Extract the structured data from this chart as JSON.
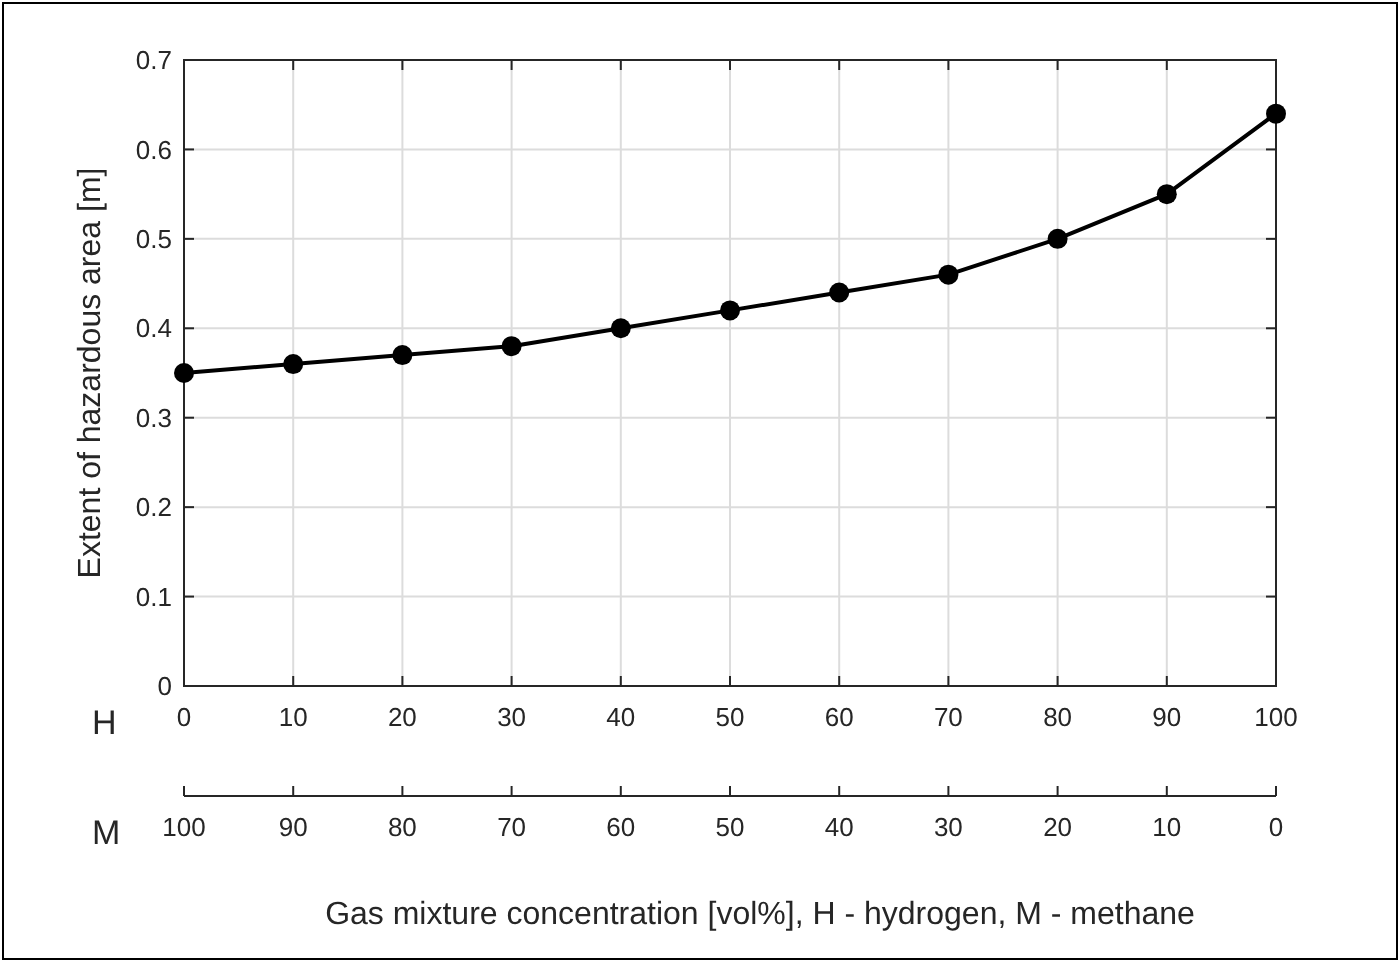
{
  "chart_data": {
    "type": "line",
    "ylabel": "Extent of hazardous area [m]",
    "xlabel": "Gas mixture concentration [vol%], H - hydrogen, M - methane",
    "x": [
      0,
      10,
      20,
      30,
      40,
      50,
      60,
      70,
      80,
      90,
      100
    ],
    "series": [
      {
        "color": "#000000",
        "values": [
          0.35,
          0.36,
          0.37,
          0.38,
          0.4,
          0.42,
          0.44,
          0.46,
          0.5,
          0.55,
          0.64
        ]
      }
    ],
    "xlim": [
      0,
      100
    ],
    "xticks": [
      0,
      10,
      20,
      30,
      40,
      50,
      60,
      70,
      80,
      90,
      100
    ],
    "x2lim": [
      100,
      0
    ],
    "x2ticks": [
      100,
      90,
      80,
      70,
      60,
      50,
      40,
      30,
      20,
      10,
      0
    ],
    "ylim": [
      0,
      0.7
    ],
    "yticks": [
      0,
      0.1,
      0.2,
      0.3,
      0.4,
      0.5,
      0.6,
      0.7
    ],
    "annotations": [
      "H",
      "M"
    ],
    "grid": true,
    "marker": "circle",
    "line_style": "solid"
  }
}
